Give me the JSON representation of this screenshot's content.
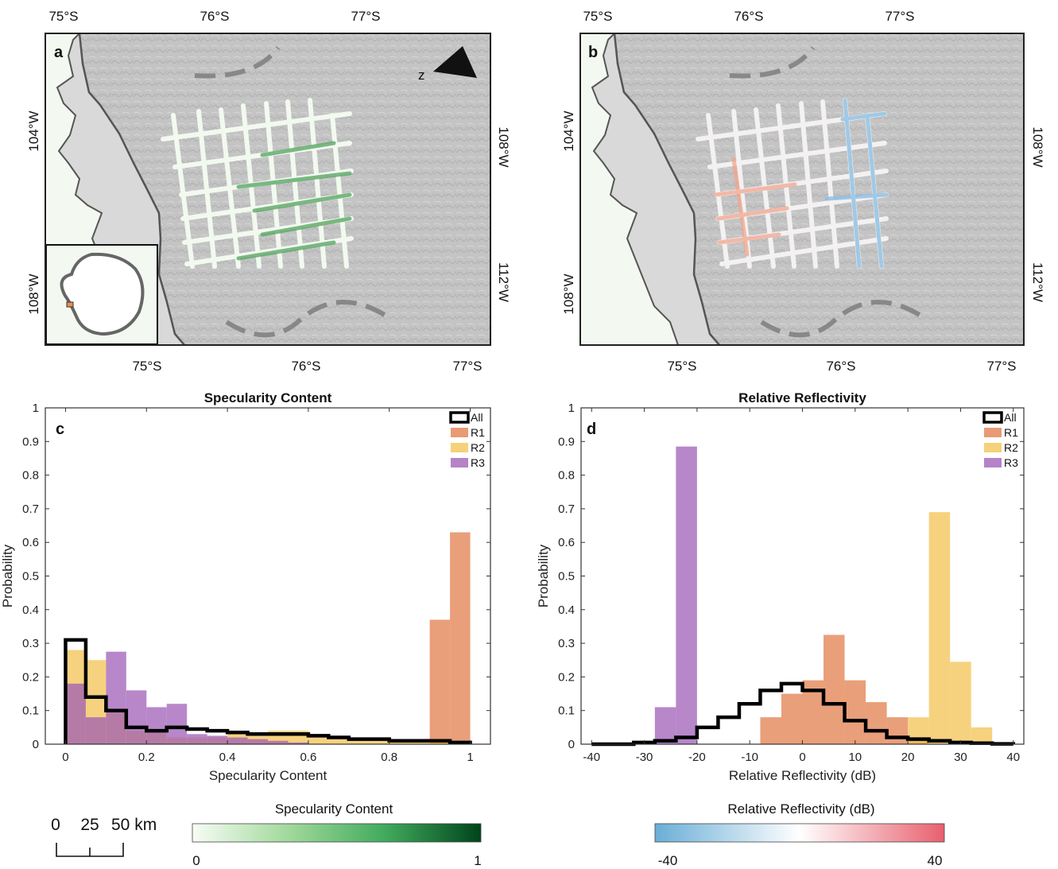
{
  "maps": {
    "a": {
      "label": "a",
      "top_labels": [
        "75°S",
        "76°S",
        "77°S"
      ],
      "bottom_labels": [
        "75°S",
        "76°S",
        "77°S"
      ],
      "left_labels": [
        "104°W",
        "108°W"
      ],
      "right_labels": [
        "108°W",
        "112°W"
      ]
    },
    "b": {
      "label": "b",
      "top_labels": [
        "75°S",
        "76°S",
        "77°S"
      ],
      "bottom_labels": [
        "75°S",
        "76°S",
        "77°S"
      ],
      "left_labels": [
        "104°W",
        "108°W"
      ],
      "right_labels": [
        "108°W",
        "112°W"
      ]
    },
    "colors": {
      "land": "#c9c9c9",
      "ocean": "#f3f9f1",
      "ice_shelf": "#d8d8d8",
      "coast": "#555555"
    }
  },
  "scale_bar": {
    "ticks": [
      "0",
      "25",
      "50 km"
    ]
  },
  "colorbars": [
    {
      "title": "Specularity Content",
      "min_label": "0",
      "max_label": "1",
      "colors": [
        "#f7fcf5",
        "#a1d99b",
        "#41ab5d",
        "#00441b"
      ]
    },
    {
      "title": "Relative Reflectivity (dB)",
      "min_label": "-40",
      "max_label": "40",
      "colors": [
        "#6aaed6",
        "#ffffff",
        "#e8606e"
      ]
    }
  ],
  "legend": {
    "entries": [
      {
        "name": "All",
        "color": "#000000",
        "style": "outline"
      },
      {
        "name": "R1",
        "color": "#e07a47"
      },
      {
        "name": "R2",
        "color": "#f2c14e"
      },
      {
        "name": "R3",
        "color": "#9b59b6"
      }
    ]
  },
  "chart_data": [
    {
      "type": "bar",
      "panel": "c",
      "title": "Specularity Content",
      "xlabel": "Specularity Content",
      "ylabel": "Probability",
      "xlim": [
        -0.05,
        1.05
      ],
      "ylim": [
        0,
        1
      ],
      "xticks": [
        "0",
        "0.2",
        "0.4",
        "0.6",
        "0.8",
        "1"
      ],
      "yticks": [
        "0",
        "0.1",
        "0.2",
        "0.3",
        "0.4",
        "0.5",
        "0.6",
        "0.7",
        "0.8",
        "0.9",
        "1"
      ],
      "bin_edges": [
        0,
        0.05,
        0.1,
        0.15,
        0.2,
        0.25,
        0.3,
        0.35,
        0.4,
        0.45,
        0.5,
        0.55,
        0.6,
        0.65,
        0.7,
        0.75,
        0.8,
        0.85,
        0.9,
        0.95,
        1.0
      ],
      "series": [
        {
          "name": "R1",
          "values": [
            0,
            0,
            0,
            0,
            0,
            0,
            0,
            0,
            0,
            0,
            0,
            0,
            0,
            0,
            0,
            0,
            0,
            0,
            0.37,
            0.63
          ]
        },
        {
          "name": "R2",
          "values": [
            0.28,
            0.25,
            0.1,
            0.04,
            0.04,
            0.02,
            0.02,
            0.02,
            0.03,
            0.03,
            0.04,
            0.04,
            0.03,
            0.02,
            0.02,
            0.015,
            0.01,
            0.01,
            0.01,
            0.01
          ]
        },
        {
          "name": "R3",
          "values": [
            0.18,
            0.08,
            0.275,
            0.16,
            0.11,
            0.12,
            0.03,
            0.025,
            0.02,
            0.015,
            0.01,
            0.005,
            0,
            0,
            0,
            0,
            0,
            0,
            0,
            0
          ]
        },
        {
          "name": "All",
          "values": [
            0.31,
            0.14,
            0.1,
            0.05,
            0.04,
            0.05,
            0.045,
            0.04,
            0.035,
            0.03,
            0.03,
            0.03,
            0.025,
            0.02,
            0.015,
            0.015,
            0.01,
            0.01,
            0.01,
            0.005
          ]
        }
      ]
    },
    {
      "type": "bar",
      "panel": "d",
      "title": "Relative Reflectivity",
      "xlabel": "Relative Reflectivity (dB)",
      "ylabel": "Probability",
      "xlim": [
        -42,
        42
      ],
      "ylim": [
        0,
        1
      ],
      "xticks": [
        "-40",
        "-30",
        "-20",
        "-10",
        "0",
        "10",
        "20",
        "30",
        "40"
      ],
      "yticks": [
        "0",
        "0.1",
        "0.2",
        "0.3",
        "0.4",
        "0.5",
        "0.6",
        "0.7",
        "0.8",
        "0.9",
        "1"
      ],
      "bin_edges": [
        -40,
        -36,
        -32,
        -28,
        -24,
        -20,
        -16,
        -12,
        -8,
        -4,
        0,
        4,
        8,
        12,
        16,
        20,
        24,
        28,
        32,
        36,
        40
      ],
      "series": [
        {
          "name": "R1",
          "values": [
            0,
            0,
            0,
            0,
            0,
            0,
            0,
            0,
            0.08,
            0.15,
            0.19,
            0.325,
            0.19,
            0.125,
            0.08,
            0.01,
            0,
            0,
            0,
            0
          ]
        },
        {
          "name": "R2",
          "values": [
            0,
            0,
            0,
            0,
            0,
            0,
            0,
            0,
            0,
            0,
            0,
            0,
            0,
            0,
            0,
            0.08,
            0.69,
            0.245,
            0.05,
            0
          ]
        },
        {
          "name": "R3",
          "values": [
            0,
            0,
            0,
            0.11,
            0.885,
            0,
            0,
            0,
            0,
            0,
            0,
            0,
            0,
            0,
            0,
            0,
            0,
            0,
            0,
            0
          ]
        },
        {
          "name": "All",
          "values": [
            0,
            0,
            0.005,
            0.01,
            0.02,
            0.05,
            0.08,
            0.12,
            0.16,
            0.18,
            0.16,
            0.12,
            0.07,
            0.04,
            0.02,
            0.015,
            0.01,
            0.005,
            0.003,
            0.001
          ]
        }
      ]
    }
  ]
}
